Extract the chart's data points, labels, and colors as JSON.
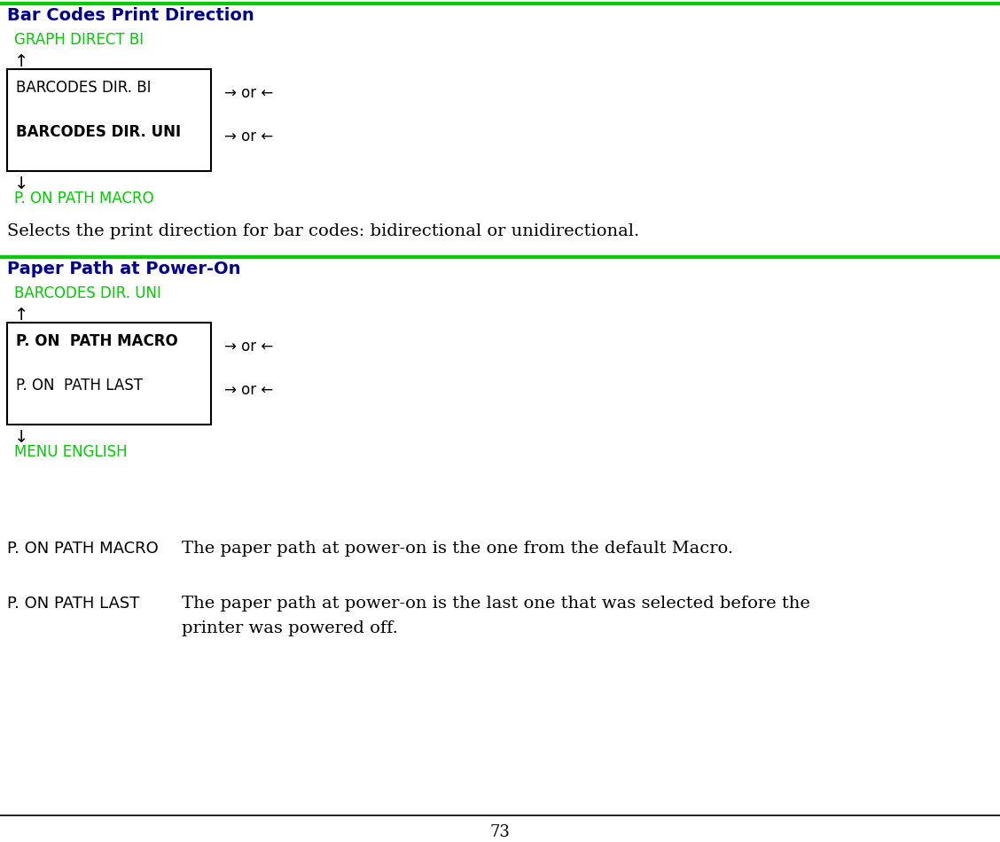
{
  "bg_color": "#ffffff",
  "green_color": "#00cc00",
  "dark_blue_color": "#00008B",
  "black_color": "#000000",
  "section1_title": "Bar Codes Print Direction",
  "section1_prev": "GRAPH DIRECT BI",
  "section1_box_item1": "BARCODES DIR. BI",
  "section1_box_item2": "BARCODES DIR. UNI",
  "section1_next": "P. ON PATH MACRO",
  "section1_desc": "Selects the print direction for bar codes: bidirectional or unidirectional.",
  "section2_title": "Paper Path at Power-On",
  "section2_prev": "BARCODES DIR. UNI",
  "section2_box_item1": "P. ON  PATH MACRO",
  "section2_box_item2": "P. ON  PATH LAST",
  "section2_next": "MENU ENGLISH",
  "def_label1": "P. ON PATH MACRO",
  "def_text1": "The paper path at power-on is the one from the default Macro.",
  "def_label2": "P. ON PATH LAST",
  "def_text2_line1": "The paper path at power-on is the last one that was selected before the",
  "def_text2_line2": "printer was powered off.",
  "page_number": "73",
  "arrow_or_text": "→ or ←",
  "up_arrow": "↑",
  "down_arrow": "↓"
}
